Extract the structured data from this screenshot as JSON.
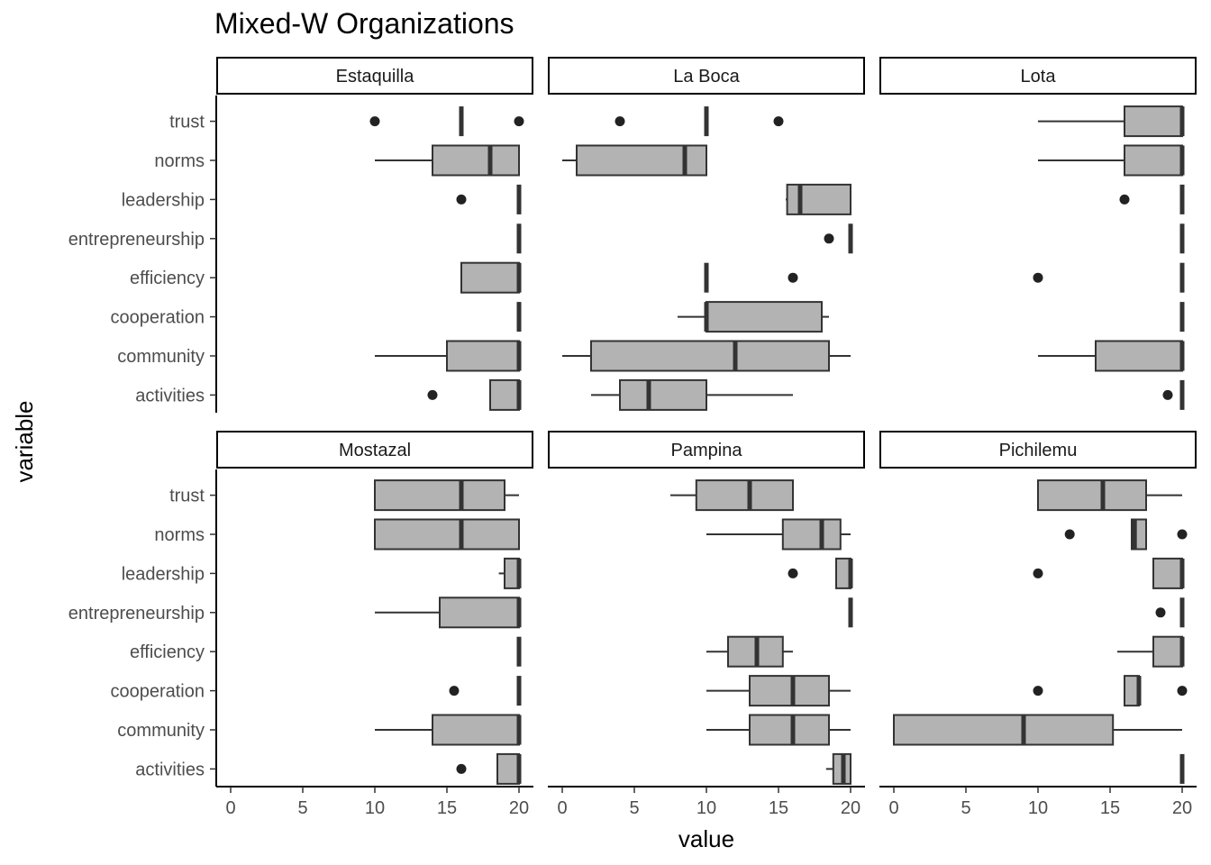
{
  "chart_data": {
    "type": "boxplot",
    "title": "Mixed-W Organizations",
    "xlabel": "value",
    "ylabel": "variable",
    "xlim": [
      -1,
      21
    ],
    "x_ticks": [
      0,
      5,
      10,
      15,
      20
    ],
    "grid": false,
    "variables": [
      "trust",
      "norms",
      "leadership",
      "entrepreneurship",
      "efficiency",
      "cooperation",
      "community",
      "activities"
    ],
    "panels": [
      {
        "name": "Estaquilla",
        "boxes": [
          {
            "variable": "trust",
            "min": 16,
            "q1": 16,
            "median": 16,
            "q3": 16,
            "max": 16,
            "outliers": [
              10,
              20
            ]
          },
          {
            "variable": "norms",
            "min": 10,
            "q1": 14,
            "median": 18,
            "q3": 20,
            "max": 20,
            "outliers": []
          },
          {
            "variable": "leadership",
            "min": 20,
            "q1": 20,
            "median": 20,
            "q3": 20,
            "max": 20,
            "outliers": [
              16
            ]
          },
          {
            "variable": "entrepreneurship",
            "min": 20,
            "q1": 20,
            "median": 20,
            "q3": 20,
            "max": 20,
            "outliers": []
          },
          {
            "variable": "efficiency",
            "min": 16,
            "q1": 16,
            "median": 20,
            "q3": 20,
            "max": 20,
            "outliers": []
          },
          {
            "variable": "cooperation",
            "min": 20,
            "q1": 20,
            "median": 20,
            "q3": 20,
            "max": 20,
            "outliers": []
          },
          {
            "variable": "community",
            "min": 10,
            "q1": 15,
            "median": 20,
            "q3": 20,
            "max": 20,
            "outliers": []
          },
          {
            "variable": "activities",
            "min": 18,
            "q1": 18,
            "median": 20,
            "q3": 20,
            "max": 20,
            "outliers": [
              14
            ]
          }
        ]
      },
      {
        "name": "La Boca",
        "boxes": [
          {
            "variable": "trust",
            "min": 10,
            "q1": 10,
            "median": 10,
            "q3": 10,
            "max": 10,
            "outliers": [
              4,
              15
            ]
          },
          {
            "variable": "norms",
            "min": 0,
            "q1": 1,
            "median": 8.5,
            "q3": 10,
            "max": 10,
            "outliers": []
          },
          {
            "variable": "leadership",
            "min": 15.5,
            "q1": 15.6,
            "median": 16.5,
            "q3": 20,
            "max": 20,
            "outliers": []
          },
          {
            "variable": "entrepreneurship",
            "min": 20,
            "q1": 20,
            "median": 20,
            "q3": 20,
            "max": 20,
            "outliers": [
              18.5
            ]
          },
          {
            "variable": "efficiency",
            "min": 10,
            "q1": 10,
            "median": 10,
            "q3": 10,
            "max": 10,
            "outliers": [
              16
            ]
          },
          {
            "variable": "cooperation",
            "min": 8,
            "q1": 10,
            "median": 10,
            "q3": 18,
            "max": 18.5,
            "outliers": []
          },
          {
            "variable": "community",
            "min": 0,
            "q1": 2,
            "median": 12,
            "q3": 18.5,
            "max": 20,
            "outliers": []
          },
          {
            "variable": "activities",
            "min": 2,
            "q1": 4,
            "median": 6,
            "q3": 10,
            "max": 16,
            "outliers": []
          }
        ]
      },
      {
        "name": "Lota",
        "boxes": [
          {
            "variable": "trust",
            "min": 10,
            "q1": 16,
            "median": 20,
            "q3": 20,
            "max": 20,
            "outliers": []
          },
          {
            "variable": "norms",
            "min": 10,
            "q1": 16,
            "median": 20,
            "q3": 20,
            "max": 20,
            "outliers": []
          },
          {
            "variable": "leadership",
            "min": 20,
            "q1": 20,
            "median": 20,
            "q3": 20,
            "max": 20,
            "outliers": [
              16
            ]
          },
          {
            "variable": "entrepreneurship",
            "min": 20,
            "q1": 20,
            "median": 20,
            "q3": 20,
            "max": 20,
            "outliers": []
          },
          {
            "variable": "efficiency",
            "min": 20,
            "q1": 20,
            "median": 20,
            "q3": 20,
            "max": 20,
            "outliers": [
              10
            ]
          },
          {
            "variable": "cooperation",
            "min": 20,
            "q1": 20,
            "median": 20,
            "q3": 20,
            "max": 20,
            "outliers": []
          },
          {
            "variable": "community",
            "min": 10,
            "q1": 14,
            "median": 20,
            "q3": 20,
            "max": 20,
            "outliers": []
          },
          {
            "variable": "activities",
            "min": 20,
            "q1": 20,
            "median": 20,
            "q3": 20,
            "max": 20,
            "outliers": [
              19
            ]
          }
        ]
      },
      {
        "name": "Mostazal",
        "boxes": [
          {
            "variable": "trust",
            "min": 10,
            "q1": 10,
            "median": 16,
            "q3": 19,
            "max": 20,
            "outliers": []
          },
          {
            "variable": "norms",
            "min": 10,
            "q1": 10,
            "median": 16,
            "q3": 20,
            "max": 20,
            "outliers": []
          },
          {
            "variable": "leadership",
            "min": 18.6,
            "q1": 19,
            "median": 20,
            "q3": 20,
            "max": 20,
            "outliers": []
          },
          {
            "variable": "entrepreneurship",
            "min": 10,
            "q1": 14.5,
            "median": 20,
            "q3": 20,
            "max": 20,
            "outliers": []
          },
          {
            "variable": "efficiency",
            "min": 20,
            "q1": 20,
            "median": 20,
            "q3": 20,
            "max": 20,
            "outliers": []
          },
          {
            "variable": "cooperation",
            "min": 20,
            "q1": 20,
            "median": 20,
            "q3": 20,
            "max": 20,
            "outliers": [
              15.5
            ]
          },
          {
            "variable": "community",
            "min": 10,
            "q1": 14,
            "median": 20,
            "q3": 20,
            "max": 20,
            "outliers": []
          },
          {
            "variable": "activities",
            "min": 18.5,
            "q1": 18.5,
            "median": 20,
            "q3": 20,
            "max": 20,
            "outliers": [
              16
            ]
          }
        ]
      },
      {
        "name": "Pampina",
        "boxes": [
          {
            "variable": "trust",
            "min": 7.5,
            "q1": 9.3,
            "median": 13,
            "q3": 16,
            "max": 16,
            "outliers": []
          },
          {
            "variable": "norms",
            "min": 10,
            "q1": 15.3,
            "median": 18,
            "q3": 19.3,
            "max": 20,
            "outliers": []
          },
          {
            "variable": "leadership",
            "min": 19,
            "q1": 19,
            "median": 20,
            "q3": 20,
            "max": 20,
            "outliers": [
              16
            ]
          },
          {
            "variable": "entrepreneurship",
            "min": 20,
            "q1": 20,
            "median": 20,
            "q3": 20,
            "max": 20,
            "outliers": []
          },
          {
            "variable": "efficiency",
            "min": 10,
            "q1": 11.5,
            "median": 13.5,
            "q3": 15.3,
            "max": 16,
            "outliers": []
          },
          {
            "variable": "cooperation",
            "min": 10,
            "q1": 13,
            "median": 16,
            "q3": 18.5,
            "max": 20,
            "outliers": []
          },
          {
            "variable": "community",
            "min": 10,
            "q1": 13,
            "median": 16,
            "q3": 18.5,
            "max": 20,
            "outliers": []
          },
          {
            "variable": "activities",
            "min": 18.3,
            "q1": 18.8,
            "median": 19.5,
            "q3": 20,
            "max": 20,
            "outliers": []
          }
        ]
      },
      {
        "name": "Pichilemu",
        "boxes": [
          {
            "variable": "trust",
            "min": 10,
            "q1": 10,
            "median": 14.5,
            "q3": 17.5,
            "max": 20,
            "outliers": []
          },
          {
            "variable": "norms",
            "min": 16.5,
            "q1": 16.5,
            "median": 16.7,
            "q3": 17.5,
            "max": 17.5,
            "outliers": [
              12.2,
              20
            ]
          },
          {
            "variable": "leadership",
            "min": 18,
            "q1": 18,
            "median": 20,
            "q3": 20,
            "max": 20,
            "outliers": [
              10
            ]
          },
          {
            "variable": "entrepreneurship",
            "min": 20,
            "q1": 20,
            "median": 20,
            "q3": 20,
            "max": 20,
            "outliers": [
              18.5
            ]
          },
          {
            "variable": "efficiency",
            "min": 15.5,
            "q1": 18,
            "median": 20,
            "q3": 20,
            "max": 20,
            "outliers": []
          },
          {
            "variable": "cooperation",
            "min": 16,
            "q1": 16,
            "median": 17,
            "q3": 17,
            "max": 17,
            "outliers": [
              10,
              20
            ]
          },
          {
            "variable": "community",
            "min": 0,
            "q1": 0,
            "median": 9,
            "q3": 15.2,
            "max": 20,
            "outliers": []
          },
          {
            "variable": "activities",
            "min": 20,
            "q1": 20,
            "median": 20,
            "q3": 20,
            "max": 20,
            "outliers": []
          }
        ]
      }
    ],
    "colors": {
      "box_fill": "#b3b3b3",
      "stroke": "#333333",
      "outlier": "#222222",
      "axis": "#000000",
      "tick_label": "#4d4d4d"
    }
  }
}
